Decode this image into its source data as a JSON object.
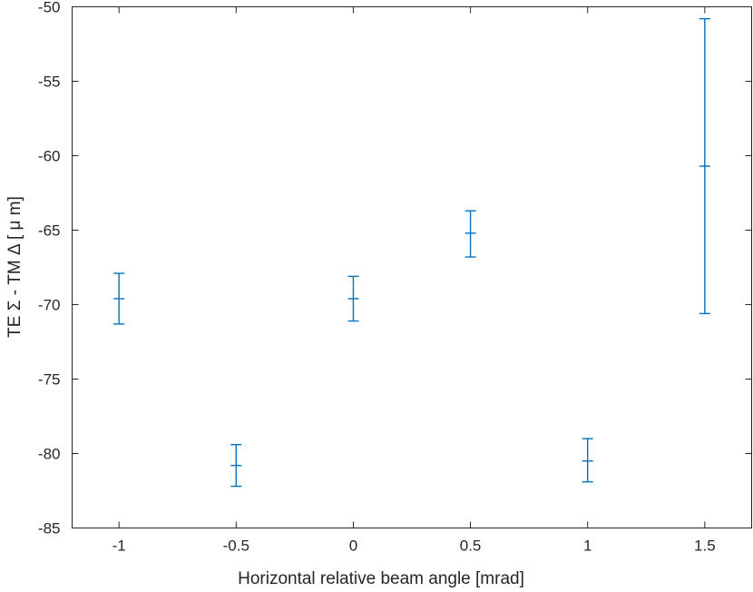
{
  "chart_data": {
    "type": "errorbar",
    "xlabel": "Horizontal relative beam angle [mrad]",
    "ylabel": "TE Σ - TM  Δ [ μ m]",
    "xlim": [
      -1.2,
      1.7
    ],
    "ylim": [
      -85,
      -50
    ],
    "xticks": [
      -1,
      -0.5,
      0,
      0.5,
      1,
      1.5
    ],
    "xtick_labels": [
      "-1",
      "-0.5",
      "0",
      "0.5",
      "1",
      "1.5"
    ],
    "yticks": [
      -85,
      -80,
      -75,
      -70,
      -65,
      -60,
      -55,
      -50
    ],
    "ytick_labels": [
      "-85",
      "-80",
      "-75",
      "-70",
      "-65",
      "-60",
      "-55",
      "-50"
    ],
    "grid": false,
    "series": [
      {
        "color": "#0072BD",
        "x": [
          -1,
          -0.5,
          0,
          0.5,
          1,
          1.5
        ],
        "y": [
          -69.6,
          -80.8,
          -69.6,
          -65.2,
          -80.5,
          -60.7
        ],
        "yerr_low": [
          -71.3,
          -82.2,
          -71.1,
          -66.8,
          -81.9,
          -70.6
        ],
        "yerr_high": [
          -67.9,
          -79.4,
          -68.1,
          -63.7,
          -79.0,
          -50.8
        ]
      }
    ]
  }
}
